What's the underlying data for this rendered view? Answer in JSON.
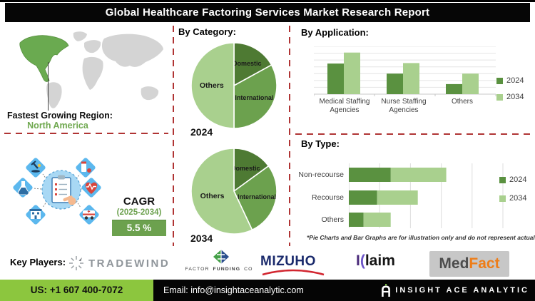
{
  "title": "Global Healthcare Factoring Services Market Research Report",
  "fastest_region": {
    "label": "Fastest Growing Region:",
    "value": "North America"
  },
  "cagr": {
    "label": "CAGR",
    "period": "(2025-2034)",
    "value": "5.5 %"
  },
  "sections": {
    "category_heading": "By Category:",
    "application_heading": "By Application:",
    "type_heading": "By Type:"
  },
  "illustration": {
    "icons": [
      "microscope-icon",
      "medicine-icon",
      "flask-icon",
      "heart-pulse-icon",
      "hospital-icon",
      "ambulance-icon",
      "clipboard-checklist-icon"
    ]
  },
  "chart_data": [
    {
      "type": "pie",
      "title": "By Category - 2024",
      "year_label": "2024",
      "labels": [
        "Domestic",
        "International",
        "Others"
      ],
      "values": [
        17,
        33,
        50
      ],
      "colors": [
        "#4e7a33",
        "#6ca14e",
        "#a9d08e"
      ],
      "note": "illustrative"
    },
    {
      "type": "pie",
      "title": "By Category - 2034",
      "year_label": "2034",
      "labels": [
        "Domestic",
        "International",
        "Others"
      ],
      "values": [
        15,
        28,
        57
      ],
      "colors": [
        "#4e7a33",
        "#6ca14e",
        "#a9d08e"
      ],
      "note": "illustrative"
    },
    {
      "type": "bar",
      "title": "By Application",
      "orientation": "vertical-grouped",
      "categories": [
        "Medical Staffing\nAgencies",
        "Nurse Staffing\nAgencies",
        "Others"
      ],
      "series": [
        {
          "name": "2024",
          "color": "#5a9140",
          "values": [
            64,
            43,
            21
          ]
        },
        {
          "name": "2034",
          "color": "#a9d08e",
          "values": [
            87,
            65,
            43
          ]
        }
      ],
      "ylim": [
        0,
        100
      ],
      "grid": true,
      "legend_position": "right",
      "note": "illustrative"
    },
    {
      "type": "bar",
      "title": "By Type",
      "orientation": "horizontal-stacked",
      "categories": [
        "Non-recourse",
        "Recourse",
        "Others"
      ],
      "series": [
        {
          "name": "2024",
          "color": "#5a9140",
          "values": [
            34,
            23,
            12
          ]
        },
        {
          "name": "2034",
          "color": "#a9d08e",
          "values": [
            45,
            33,
            22
          ]
        }
      ],
      "xlim": [
        0,
        125
      ],
      "grid": true,
      "legend_position": "right",
      "footnote": "*Pie Charts and Bar Graphs are for illustration only and do not represent actual data."
    }
  ],
  "key_players": {
    "label": "Key Players:",
    "players": [
      {
        "name": "TRADEWIND"
      },
      {
        "name": "FACTOR FUNDING CO",
        "parts": [
          "FACTOR",
          "FUNDING",
          "CO"
        ]
      },
      {
        "name": "MIZUHO"
      },
      {
        "name": "Klaim",
        "parts": [
          "I",
          "(",
          "laim"
        ]
      },
      {
        "name": "MedFact",
        "parts": [
          "Med",
          "Fact"
        ]
      }
    ]
  },
  "footer": {
    "phone": "US: +1 607 400-7072",
    "email": "Email: info@insightaceanalytic.com",
    "brand": "INSIGHT ACE ANALYTIC"
  },
  "colors": {
    "accent_green_dark": "#5a9140",
    "accent_green_mid": "#6ca14e",
    "accent_green_light": "#a9d08e",
    "separator_red": "#b03434",
    "footer_green": "#8cc63e",
    "map_highlight_green": "#6aaa50"
  }
}
